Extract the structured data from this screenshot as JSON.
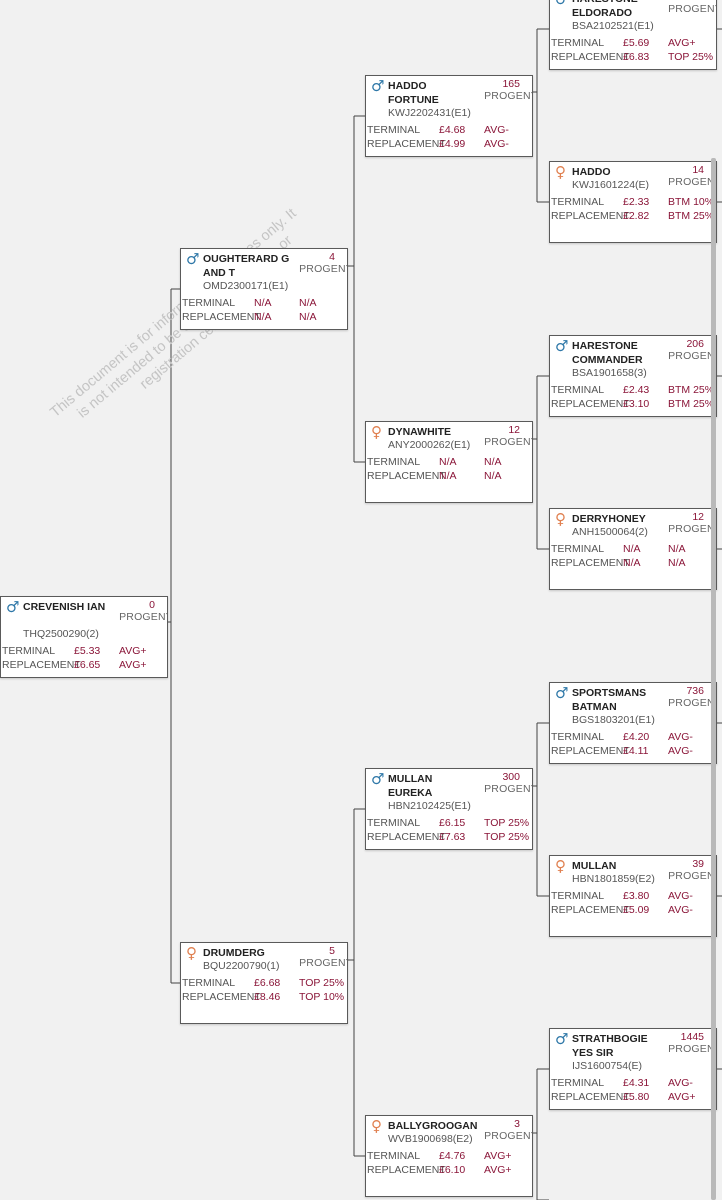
{
  "labels": {
    "progeny": "PROGENY",
    "terminal": "TERMINAL",
    "replacement": "REPLACEMENT"
  },
  "watermark": "This document is for information purposes only. It is not intended to be used as a pedigree or registration certificate.",
  "animals": {
    "crevenish": {
      "sex": "male",
      "name": "CREVENISH IAN",
      "progeny": "0",
      "reg": "THQ2500290(2)",
      "terminal": "£5.33",
      "terminal_rank": "AVG+",
      "replacement": "£6.65",
      "replacement_rank": "AVG+"
    },
    "oughterard": {
      "sex": "male",
      "name": "OUGHTERARD G AND T",
      "progeny": "4",
      "reg": "OMD2300171(E1)",
      "terminal": "N/A",
      "terminal_rank": "N/A",
      "replacement": "N/A",
      "replacement_rank": "N/A"
    },
    "drumderg": {
      "sex": "female",
      "name": "DRUMDERG",
      "progeny": "5",
      "reg": "BQU2200790(1)",
      "terminal": "£6.68",
      "terminal_rank": "TOP 25%",
      "replacement": "£8.46",
      "replacement_rank": "TOP 10%"
    },
    "haddo_fortune": {
      "sex": "male",
      "name": "HADDO FORTUNE",
      "progeny": "165",
      "reg": "KWJ2202431(E1)",
      "terminal": "£4.68",
      "terminal_rank": "AVG-",
      "replacement": "£4.99",
      "replacement_rank": "AVG-"
    },
    "dynawhite": {
      "sex": "female",
      "name": "DYNAWHITE",
      "progeny": "12",
      "reg": "ANY2000262(E1)",
      "terminal": "N/A",
      "terminal_rank": "N/A",
      "replacement": "N/A",
      "replacement_rank": "N/A"
    },
    "mullan_eureka": {
      "sex": "male",
      "name": "MULLAN EUREKA",
      "progeny": "300",
      "reg": "HBN2102425(E1)",
      "terminal": "£6.15",
      "terminal_rank": "TOP 25%",
      "replacement": "£7.63",
      "replacement_rank": "TOP 25%"
    },
    "ballygroogan": {
      "sex": "female",
      "name": "BALLYGROOGAN",
      "progeny": "3",
      "reg": "WVB1900698(E2)",
      "terminal": "£4.76",
      "terminal_rank": "AVG+",
      "replacement": "£6.10",
      "replacement_rank": "AVG+"
    },
    "harestone_eldorado": {
      "sex": "male",
      "name": "HARESTONE ELDORADO",
      "progeny": "",
      "reg": "BSA2102521(E1)",
      "terminal": "£5.69",
      "terminal_rank": "AVG+",
      "replacement": "£6.83",
      "replacement_rank": "TOP 25%"
    },
    "haddo": {
      "sex": "female",
      "name": "HADDO",
      "progeny": "14",
      "reg": "KWJ1601224(E)",
      "terminal": "£2.33",
      "terminal_rank": "BTM 10%",
      "replacement": "£2.82",
      "replacement_rank": "BTM 25%"
    },
    "harestone_commander": {
      "sex": "male",
      "name": "HARESTONE COMMANDER",
      "progeny": "206",
      "reg": "BSA1901658(3)",
      "terminal": "£2.43",
      "terminal_rank": "BTM 25%",
      "replacement": "£3.10",
      "replacement_rank": "BTM 25%"
    },
    "derryhoney": {
      "sex": "female",
      "name": "DERRYHONEY",
      "progeny": "12",
      "reg": "ANH1500064(2)",
      "terminal": "N/A",
      "terminal_rank": "N/A",
      "replacement": "N/A",
      "replacement_rank": "N/A"
    },
    "sportsmans_batman": {
      "sex": "male",
      "name": "SPORTSMANS BATMAN",
      "progeny": "736",
      "reg": "BGS1803201(E1)",
      "terminal": "£4.20",
      "terminal_rank": "AVG-",
      "replacement": "£4.11",
      "replacement_rank": "AVG-"
    },
    "mullan": {
      "sex": "female",
      "name": "MULLAN",
      "progeny": "39",
      "reg": "HBN1801859(E2)",
      "terminal": "£3.80",
      "terminal_rank": "AVG-",
      "replacement": "£5.09",
      "replacement_rank": "AVG-"
    },
    "strathbogie_yes_sir": {
      "sex": "male",
      "name": "STRATHBOGIE YES SIR",
      "progeny": "1445",
      "reg": "IJS1600754(E)",
      "terminal": "£4.31",
      "terminal_rank": "AVG-",
      "replacement": "£5.80",
      "replacement_rank": "AVG+"
    }
  }
}
